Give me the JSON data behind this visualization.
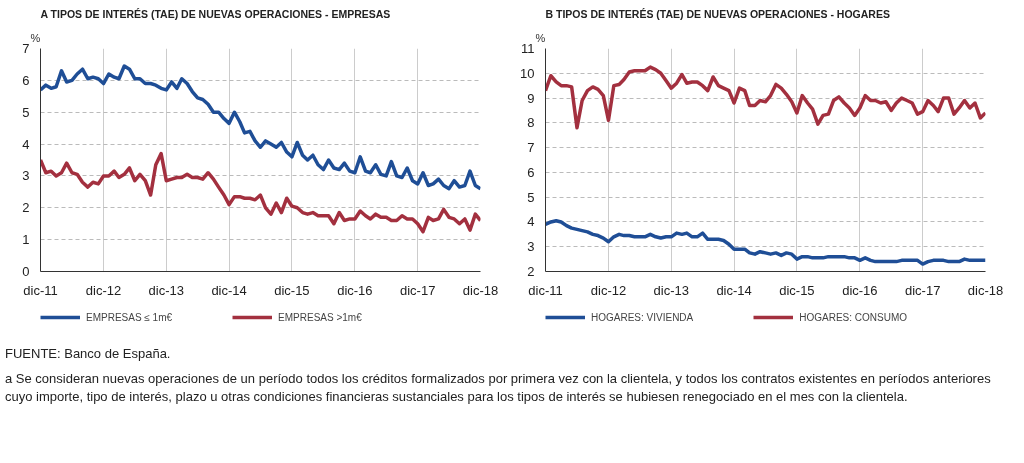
{
  "chart_data": [
    {
      "type": "line",
      "title": "A  TIPOS DE INTERÉS (TAE) DE NUEVAS OPERACIONES - EMPRESAS",
      "ylabel": "%",
      "x": [
        "2011-12",
        "2012-01",
        "2012-02",
        "2012-03",
        "2012-04",
        "2012-05",
        "2012-06",
        "2012-07",
        "2012-08",
        "2012-09",
        "2012-10",
        "2012-11",
        "2012-12",
        "2013-01",
        "2013-02",
        "2013-03",
        "2013-04",
        "2013-05",
        "2013-06",
        "2013-07",
        "2013-08",
        "2013-09",
        "2013-10",
        "2013-11",
        "2013-12",
        "2014-01",
        "2014-02",
        "2014-03",
        "2014-04",
        "2014-05",
        "2014-06",
        "2014-07",
        "2014-08",
        "2014-09",
        "2014-10",
        "2014-11",
        "2014-12",
        "2015-01",
        "2015-02",
        "2015-03",
        "2015-04",
        "2015-05",
        "2015-06",
        "2015-07",
        "2015-08",
        "2015-09",
        "2015-10",
        "2015-11",
        "2015-12",
        "2016-01",
        "2016-02",
        "2016-03",
        "2016-04",
        "2016-05",
        "2016-06",
        "2016-07",
        "2016-08",
        "2016-09",
        "2016-10",
        "2016-11",
        "2016-12",
        "2017-01",
        "2017-02",
        "2017-03",
        "2017-04",
        "2017-05",
        "2017-06",
        "2017-07",
        "2017-08",
        "2017-09",
        "2017-10",
        "2017-11",
        "2017-12",
        "2018-01",
        "2018-02",
        "2018-03",
        "2018-04",
        "2018-05",
        "2018-06",
        "2018-07",
        "2018-08",
        "2018-09",
        "2018-10",
        "2018-11",
        "2018-12"
      ],
      "series": [
        {
          "name": "EMPRESAS ≤ 1m€",
          "color": "#1f4e96",
          "values": [
            5.7,
            5.85,
            5.75,
            5.8,
            6.3,
            5.95,
            6.0,
            6.2,
            6.35,
            6.05,
            6.1,
            6.05,
            5.9,
            6.2,
            6.1,
            6.05,
            6.45,
            6.35,
            6.05,
            6.05,
            5.9,
            5.9,
            5.85,
            5.75,
            5.7,
            5.95,
            5.75,
            6.05,
            5.9,
            5.65,
            5.45,
            5.4,
            5.25,
            5.0,
            5.0,
            4.8,
            4.65,
            5.0,
            4.7,
            4.35,
            4.4,
            4.1,
            3.9,
            4.1,
            4.0,
            3.9,
            4.05,
            3.75,
            3.6,
            4.05,
            3.65,
            3.5,
            3.65,
            3.35,
            3.2,
            3.5,
            3.25,
            3.2,
            3.4,
            3.15,
            3.1,
            3.6,
            3.15,
            3.1,
            3.35,
            3.05,
            3.0,
            3.45,
            3.0,
            2.95,
            3.25,
            2.85,
            2.75,
            3.1,
            2.7,
            2.75,
            2.9,
            2.7,
            2.6,
            2.85,
            2.65,
            2.7,
            3.15,
            2.7,
            2.6
          ]
        },
        {
          "name": "EMPRESAS >1m€",
          "color": "#a3303f",
          "values": [
            3.5,
            3.1,
            3.15,
            3.0,
            3.1,
            3.4,
            3.1,
            3.05,
            2.8,
            2.65,
            2.8,
            2.75,
            3.0,
            3.0,
            3.15,
            2.95,
            3.05,
            3.25,
            2.85,
            3.05,
            2.85,
            2.4,
            3.35,
            3.7,
            2.85,
            2.9,
            2.95,
            2.95,
            3.05,
            2.95,
            2.95,
            2.9,
            3.1,
            2.9,
            2.65,
            2.4,
            2.1,
            2.35,
            2.35,
            2.3,
            2.3,
            2.25,
            2.4,
            2.0,
            1.8,
            2.15,
            1.85,
            2.3,
            2.05,
            2.0,
            1.85,
            1.8,
            1.85,
            1.75,
            1.75,
            1.75,
            1.5,
            1.85,
            1.6,
            1.65,
            1.65,
            1.9,
            1.75,
            1.65,
            1.8,
            1.7,
            1.7,
            1.6,
            1.6,
            1.75,
            1.65,
            1.65,
            1.5,
            1.25,
            1.7,
            1.6,
            1.65,
            1.95,
            1.7,
            1.65,
            1.5,
            1.65,
            1.3,
            1.8,
            1.6
          ]
        }
      ],
      "xlim": [
        "2011-12",
        "2018-12"
      ],
      "xticks": [
        {
          "value": "2011-12",
          "label": "dic-11"
        },
        {
          "value": "2012-12",
          "label": "dic-12"
        },
        {
          "value": "2013-12",
          "label": "dic-13"
        },
        {
          "value": "2014-12",
          "label": "dic-14"
        },
        {
          "value": "2015-12",
          "label": "dic-15"
        },
        {
          "value": "2016-12",
          "label": "dic-16"
        },
        {
          "value": "2017-12",
          "label": "dic-17"
        },
        {
          "value": "2018-12",
          "label": "dic-18"
        }
      ],
      "ylim": [
        0,
        7
      ],
      "yticks": [
        0,
        1,
        2,
        3,
        4,
        5,
        6,
        7
      ],
      "grid": true,
      "legend": "bottom"
    },
    {
      "type": "line",
      "title": "B  TIPOS DE INTERÉS (TAE) DE NUEVAS OPERACIONES - HOGARES",
      "ylabel": "%",
      "x": [
        "2011-12",
        "2012-01",
        "2012-02",
        "2012-03",
        "2012-04",
        "2012-05",
        "2012-06",
        "2012-07",
        "2012-08",
        "2012-09",
        "2012-10",
        "2012-11",
        "2012-12",
        "2013-01",
        "2013-02",
        "2013-03",
        "2013-04",
        "2013-05",
        "2013-06",
        "2013-07",
        "2013-08",
        "2013-09",
        "2013-10",
        "2013-11",
        "2013-12",
        "2014-01",
        "2014-02",
        "2014-03",
        "2014-04",
        "2014-05",
        "2014-06",
        "2014-07",
        "2014-08",
        "2014-09",
        "2014-10",
        "2014-11",
        "2014-12",
        "2015-01",
        "2015-02",
        "2015-03",
        "2015-04",
        "2015-05",
        "2015-06",
        "2015-07",
        "2015-08",
        "2015-09",
        "2015-10",
        "2015-11",
        "2015-12",
        "2016-01",
        "2016-02",
        "2016-03",
        "2016-04",
        "2016-05",
        "2016-06",
        "2016-07",
        "2016-08",
        "2016-09",
        "2016-10",
        "2016-11",
        "2016-12",
        "2017-01",
        "2017-02",
        "2017-03",
        "2017-04",
        "2017-05",
        "2017-06",
        "2017-07",
        "2017-08",
        "2017-09",
        "2017-10",
        "2017-11",
        "2017-12",
        "2018-01",
        "2018-02",
        "2018-03",
        "2018-04",
        "2018-05",
        "2018-06",
        "2018-07",
        "2018-08",
        "2018-09",
        "2018-10",
        "2018-11",
        "2018-12"
      ],
      "series": [
        {
          "name": "HOGARES: VIVIENDA",
          "color": "#1f4e96",
          "values": [
            3.9,
            4.0,
            4.05,
            4.0,
            3.85,
            3.75,
            3.7,
            3.65,
            3.6,
            3.5,
            3.45,
            3.35,
            3.2,
            3.4,
            3.5,
            3.45,
            3.45,
            3.4,
            3.4,
            3.4,
            3.5,
            3.4,
            3.35,
            3.4,
            3.4,
            3.55,
            3.5,
            3.55,
            3.4,
            3.4,
            3.55,
            3.3,
            3.3,
            3.3,
            3.25,
            3.1,
            2.9,
            2.9,
            2.9,
            2.75,
            2.7,
            2.8,
            2.75,
            2.7,
            2.75,
            2.65,
            2.75,
            2.7,
            2.5,
            2.6,
            2.6,
            2.55,
            2.55,
            2.55,
            2.6,
            2.6,
            2.6,
            2.6,
            2.55,
            2.55,
            2.45,
            2.55,
            2.45,
            2.4,
            2.4,
            2.4,
            2.4,
            2.4,
            2.45,
            2.45,
            2.45,
            2.45,
            2.3,
            2.4,
            2.45,
            2.45,
            2.45,
            2.4,
            2.4,
            2.4,
            2.5,
            2.45,
            2.45,
            2.45,
            2.45
          ]
        },
        {
          "name": "HOGARES: CONSUMO",
          "color": "#a3303f",
          "values": [
            9.3,
            9.9,
            9.65,
            9.5,
            9.5,
            9.45,
            7.8,
            8.9,
            9.3,
            9.45,
            9.35,
            9.1,
            8.1,
            9.5,
            9.55,
            9.75,
            10.05,
            10.1,
            10.1,
            10.1,
            10.25,
            10.15,
            10.0,
            9.7,
            9.4,
            9.6,
            9.95,
            9.6,
            9.65,
            9.65,
            9.5,
            9.3,
            9.85,
            9.5,
            9.4,
            9.3,
            8.8,
            9.4,
            9.3,
            8.7,
            8.7,
            8.9,
            8.85,
            9.1,
            9.55,
            9.4,
            9.15,
            8.85,
            8.4,
            9.1,
            8.8,
            8.55,
            7.95,
            8.3,
            8.35,
            8.9,
            9.05,
            8.8,
            8.6,
            8.3,
            8.6,
            9.1,
            8.9,
            8.9,
            8.8,
            8.85,
            8.5,
            8.8,
            9.0,
            8.9,
            8.8,
            8.35,
            8.45,
            8.9,
            8.7,
            8.45,
            9.0,
            9.0,
            8.35,
            8.6,
            8.9,
            8.6,
            8.8,
            8.2,
            8.4
          ]
        }
      ],
      "xlim": [
        "2011-12",
        "2018-12"
      ],
      "xticks": [
        {
          "value": "2011-12",
          "label": "dic-11"
        },
        {
          "value": "2012-12",
          "label": "dic-12"
        },
        {
          "value": "2013-12",
          "label": "dic-13"
        },
        {
          "value": "2014-12",
          "label": "dic-14"
        },
        {
          "value": "2015-12",
          "label": "dic-15"
        },
        {
          "value": "2016-12",
          "label": "dic-16"
        },
        {
          "value": "2017-12",
          "label": "dic-17"
        },
        {
          "value": "2018-12",
          "label": "dic-18"
        }
      ],
      "ylim": [
        2,
        11
      ],
      "yticks": [
        2,
        3,
        4,
        5,
        6,
        7,
        8,
        9,
        10,
        11
      ],
      "grid": true,
      "legend": "bottom",
      "annotations": [
        "FUENTE: Banco de España.",
        "a  Se consideran nuevas operaciones de un período todos los créditos formalizados por primera vez con la clientela, y todos los contratos existentes en períodos anteriores cuyo importe, tipo de interés, plazo u otras condiciones financieras sustanciales para los tipos de interés se hubiesen renegociado en el mes con la clientela."
      ]
    }
  ]
}
